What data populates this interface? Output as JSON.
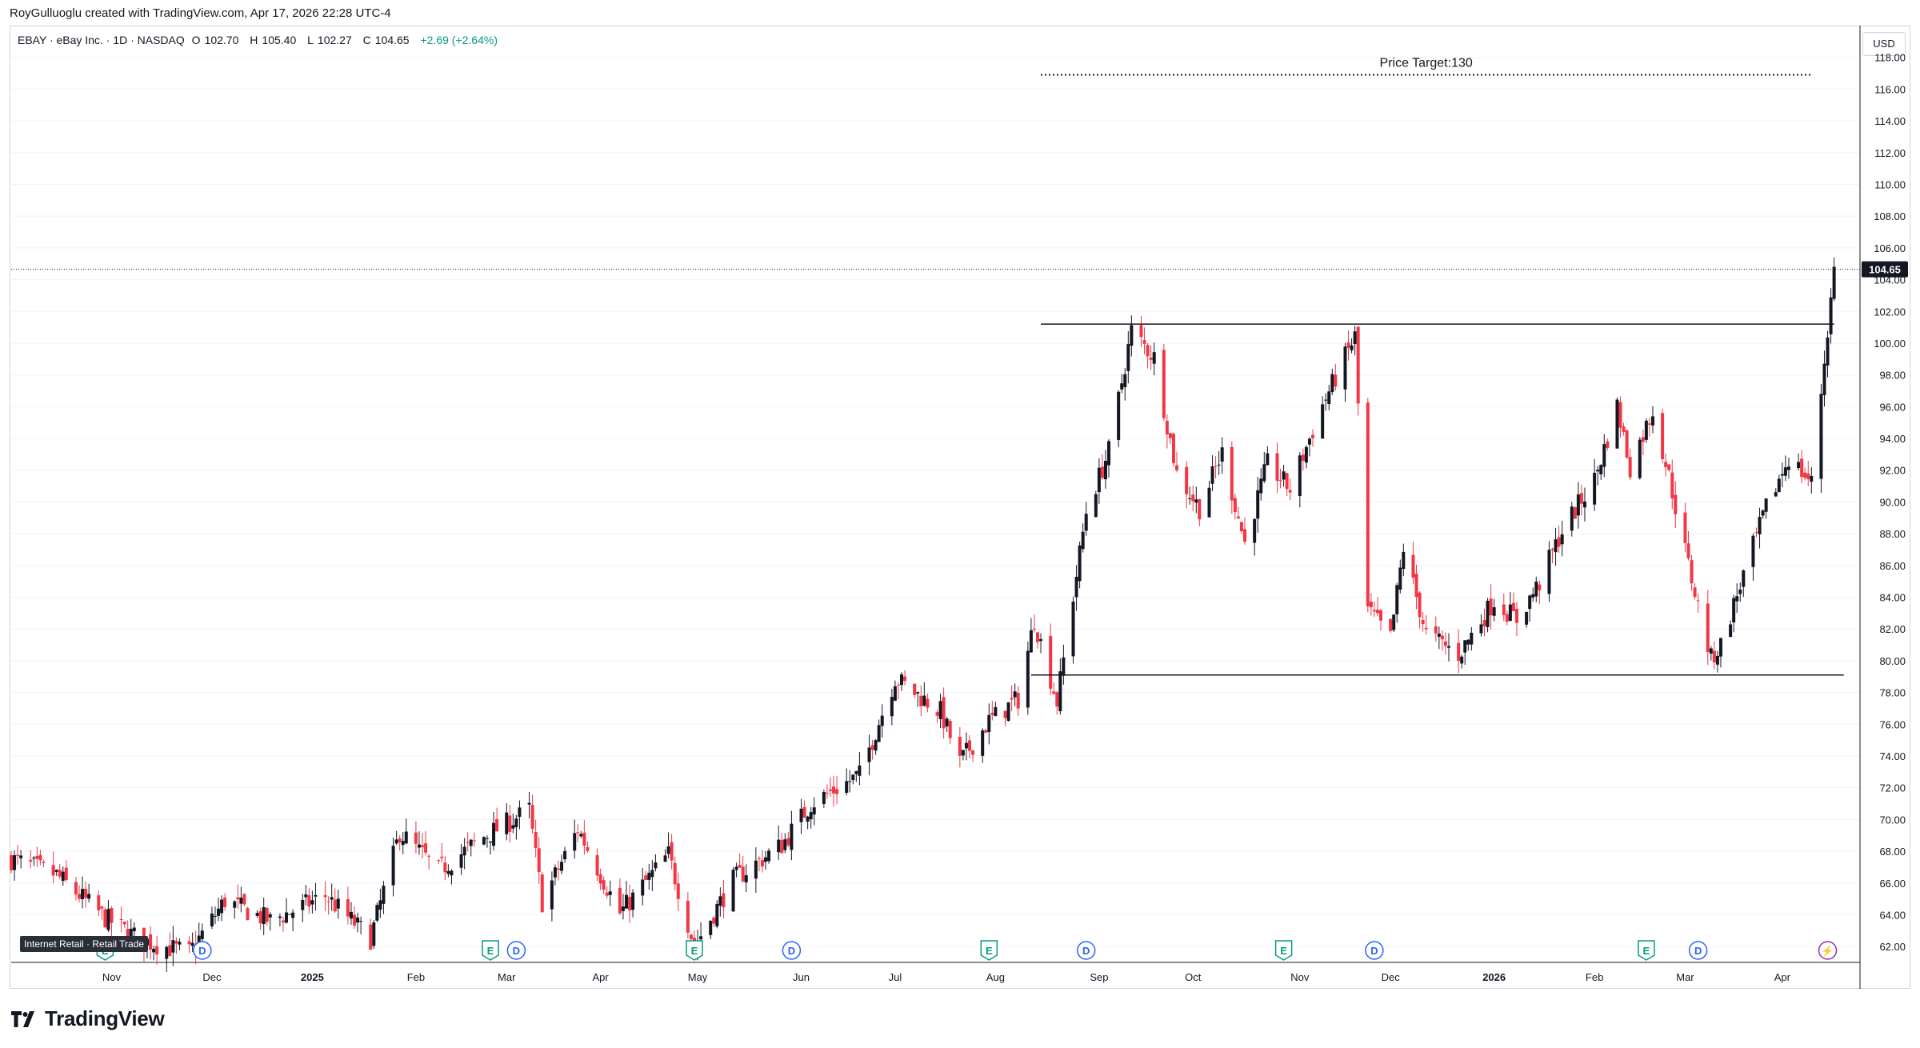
{
  "header": {
    "credit": "RoyGulluoglu created with TradingView.com, Apr 17, 2026 22:28 UTC-4"
  },
  "legend": {
    "symbol": "EBAY · eBay Inc. · 1D · NASDAQ",
    "open_label": "O",
    "open": "102.70",
    "high_label": "H",
    "high": "105.40",
    "low_label": "L",
    "low": "102.27",
    "close_label": "C",
    "close": "104.65",
    "change": "+2.69 (+2.64%)"
  },
  "currency": "USD",
  "footer": {
    "brand": "TradingView"
  },
  "tags": {
    "sector": "Internet Retail · Retail Trade"
  },
  "colors": {
    "up": "#131722",
    "down": "#f23645",
    "grid": "#f0f3fa",
    "change": "#089981",
    "earnings": "#089981",
    "dividend": "#2962ff",
    "split": "#9c27b0"
  },
  "chart_data": {
    "type": "candlestick",
    "ylim": [
      61,
      120
    ],
    "y_ticks": [
      "62.00",
      "64.00",
      "66.00",
      "68.00",
      "70.00",
      "72.00",
      "74.00",
      "76.00",
      "78.00",
      "80.00",
      "82.00",
      "84.00",
      "86.00",
      "88.00",
      "90.00",
      "92.00",
      "94.00",
      "96.00",
      "98.00",
      "100.00",
      "102.00",
      "104.00",
      "106.00",
      "108.00",
      "110.00",
      "112.00",
      "114.00",
      "116.00",
      "118.00"
    ],
    "x_ticks": [
      {
        "label": "Nov",
        "date": "2024-11-01",
        "bold": false
      },
      {
        "label": "Dec",
        "date": "2024-12-02",
        "bold": false
      },
      {
        "label": "2025",
        "date": "2025-01-02",
        "bold": true
      },
      {
        "label": "Feb",
        "date": "2025-02-03",
        "bold": false
      },
      {
        "label": "Mar",
        "date": "2025-03-03",
        "bold": false
      },
      {
        "label": "Apr",
        "date": "2025-04-01",
        "bold": false
      },
      {
        "label": "May",
        "date": "2025-05-01",
        "bold": false
      },
      {
        "label": "Jun",
        "date": "2025-06-02",
        "bold": false
      },
      {
        "label": "Jul",
        "date": "2025-07-01",
        "bold": false
      },
      {
        "label": "Aug",
        "date": "2025-08-01",
        "bold": false
      },
      {
        "label": "Sep",
        "date": "2025-09-02",
        "bold": false
      },
      {
        "label": "Oct",
        "date": "2025-10-01",
        "bold": false
      },
      {
        "label": "Nov",
        "date": "2025-11-03",
        "bold": false
      },
      {
        "label": "Dec",
        "date": "2025-12-01",
        "bold": false
      },
      {
        "label": "2026",
        "date": "2026-01-02",
        "bold": true
      },
      {
        "label": "Feb",
        "date": "2026-02-02",
        "bold": false
      },
      {
        "label": "Mar",
        "date": "2026-03-02",
        "bold": false
      },
      {
        "label": "Apr",
        "date": "2026-04-01",
        "bold": false
      }
    ],
    "last_price": {
      "value": 104.65,
      "label": "104.65"
    },
    "annotations": [
      {
        "text": "Price Target:130",
        "y": 116.9,
        "from": "2025-08-15",
        "to": "2026-04-10",
        "style": "dotted"
      }
    ],
    "lines": [
      {
        "name": "resistance",
        "y": 101.2,
        "from": "2025-08-15",
        "to": "2026-04-17"
      },
      {
        "name": "support",
        "y": 79.1,
        "from": "2025-08-12",
        "to": "2026-04-20"
      }
    ],
    "events": [
      {
        "type": "E",
        "date": "2024-10-30"
      },
      {
        "type": "D",
        "date": "2024-11-29"
      },
      {
        "type": "E",
        "date": "2025-02-26"
      },
      {
        "type": "D",
        "date": "2025-03-06"
      },
      {
        "type": "E",
        "date": "2025-04-30"
      },
      {
        "type": "D",
        "date": "2025-05-30"
      },
      {
        "type": "E",
        "date": "2025-07-30"
      },
      {
        "type": "D",
        "date": "2025-08-29"
      },
      {
        "type": "E",
        "date": "2025-10-29"
      },
      {
        "type": "D",
        "date": "2025-11-26"
      },
      {
        "type": "E",
        "date": "2026-02-18"
      },
      {
        "type": "D",
        "date": "2026-03-06"
      },
      {
        "type": "S",
        "date": "2026-04-15"
      }
    ],
    "anchors": [
      {
        "date": "2024-10-01",
        "close": 67.5
      },
      {
        "date": "2024-10-15",
        "close": 66.5
      },
      {
        "date": "2024-10-30",
        "close": 63.8
      },
      {
        "date": "2024-11-10",
        "close": 62.4
      },
      {
        "date": "2024-11-25",
        "close": 61.6
      },
      {
        "date": "2024-12-06",
        "close": 64.9
      },
      {
        "date": "2024-12-20",
        "close": 63.6
      },
      {
        "date": "2025-01-06",
        "close": 65.2
      },
      {
        "date": "2025-01-20",
        "close": 62.5
      },
      {
        "date": "2025-01-29",
        "close": 69.2
      },
      {
        "date": "2025-02-10",
        "close": 66.8
      },
      {
        "date": "2025-02-24",
        "close": 68.9
      },
      {
        "date": "2025-03-10",
        "close": 70.6
      },
      {
        "date": "2025-03-14",
        "close": 64.8
      },
      {
        "date": "2025-03-25",
        "close": 69.4
      },
      {
        "date": "2025-04-07",
        "close": 64.1
      },
      {
        "date": "2025-04-22",
        "close": 67.8
      },
      {
        "date": "2025-04-30",
        "close": 62.0
      },
      {
        "date": "2025-05-12",
        "close": 66.2
      },
      {
        "date": "2025-05-27",
        "close": 68.4
      },
      {
        "date": "2025-06-05",
        "close": 71.0
      },
      {
        "date": "2025-06-20",
        "close": 72.8
      },
      {
        "date": "2025-07-01",
        "close": 78.9
      },
      {
        "date": "2025-07-15",
        "close": 76.8
      },
      {
        "date": "2025-07-21",
        "close": 73.6
      },
      {
        "date": "2025-07-30",
        "close": 76.2
      },
      {
        "date": "2025-08-08",
        "close": 77.6
      },
      {
        "date": "2025-08-13",
        "close": 82.6
      },
      {
        "date": "2025-08-20",
        "close": 77.4
      },
      {
        "date": "2025-08-29",
        "close": 89.4
      },
      {
        "date": "2025-09-05",
        "close": 93.2
      },
      {
        "date": "2025-09-12",
        "close": 100.8
      },
      {
        "date": "2025-09-19",
        "close": 99.1
      },
      {
        "date": "2025-09-26",
        "close": 91.8
      },
      {
        "date": "2025-10-03",
        "close": 89.6
      },
      {
        "date": "2025-10-10",
        "close": 93.1
      },
      {
        "date": "2025-10-17",
        "close": 87.4
      },
      {
        "date": "2025-10-24",
        "close": 92.4
      },
      {
        "date": "2025-10-31",
        "close": 90.8
      },
      {
        "date": "2025-11-10",
        "close": 96.1
      },
      {
        "date": "2025-11-20",
        "close": 100.4
      },
      {
        "date": "2025-11-24",
        "close": 83.2
      },
      {
        "date": "2025-12-01",
        "close": 81.4
      },
      {
        "date": "2025-12-05",
        "close": 87.1
      },
      {
        "date": "2025-12-12",
        "close": 81.7
      },
      {
        "date": "2025-12-22",
        "close": 80.4
      },
      {
        "date": "2026-01-02",
        "close": 83.8
      },
      {
        "date": "2026-01-09",
        "close": 82.6
      },
      {
        "date": "2026-01-16",
        "close": 84.9
      },
      {
        "date": "2026-01-23",
        "close": 88.2
      },
      {
        "date": "2026-02-02",
        "close": 91.4
      },
      {
        "date": "2026-02-09",
        "close": 96.0
      },
      {
        "date": "2026-02-13",
        "close": 92.2
      },
      {
        "date": "2026-02-20",
        "close": 95.8
      },
      {
        "date": "2026-02-25",
        "close": 91.6
      },
      {
        "date": "2026-03-03",
        "close": 86.0
      },
      {
        "date": "2026-03-10",
        "close": 80.1
      },
      {
        "date": "2026-03-13",
        "close": 81.0
      },
      {
        "date": "2026-03-20",
        "close": 85.4
      },
      {
        "date": "2026-03-27",
        "close": 89.6
      },
      {
        "date": "2026-04-03",
        "close": 92.8
      },
      {
        "date": "2026-04-10",
        "close": 91.2
      },
      {
        "date": "2026-04-17",
        "close": 104.65
      }
    ]
  }
}
